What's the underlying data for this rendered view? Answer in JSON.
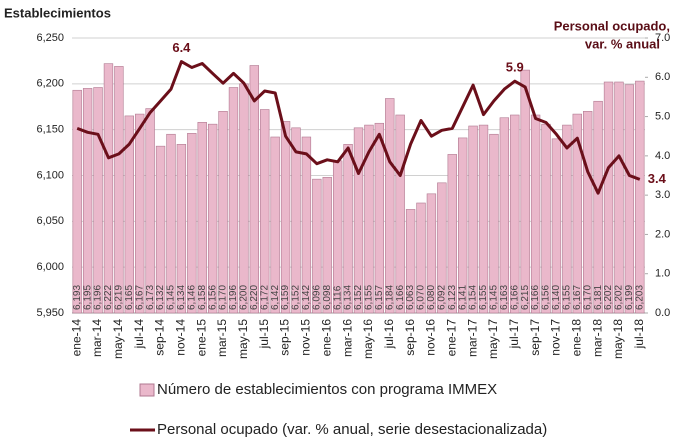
{
  "chart_data": {
    "type": "bar",
    "y_axis_title": "Establecimientos",
    "y2_axis_title_lines": [
      "Personal ocupado,",
      "var. %  anual"
    ],
    "categories": [
      "ene-14",
      null,
      "mar-14",
      null,
      "may-14",
      null,
      "jul-14",
      null,
      "sep-14",
      null,
      "nov-14",
      null,
      "ene-15",
      null,
      "mar-15",
      null,
      "may-15",
      null,
      "jul-15",
      null,
      "sep-15",
      null,
      "nov-15",
      null,
      "ene-16",
      null,
      "mar-16",
      null,
      "may-16",
      null,
      "jul-16",
      null,
      "sep-16",
      null,
      "nov-16",
      null,
      "ene-17",
      null,
      "mar-17",
      null,
      "may-17",
      null,
      "jul-17",
      null,
      "sep-17",
      null,
      "nov-17",
      null,
      "ene-18",
      null,
      "mar-18",
      null,
      "may-18",
      null,
      "jul-18"
    ],
    "ylim": [
      5950,
      6250
    ],
    "yticks": [
      {
        "value": 5950,
        "label": "5,950"
      },
      {
        "value": 6000,
        "label": "6,000"
      },
      {
        "value": 6050,
        "label": "6,050"
      },
      {
        "value": 6100,
        "label": "6,100"
      },
      {
        "value": 6150,
        "label": "6,150"
      },
      {
        "value": 6200,
        "label": "6,200"
      },
      {
        "value": 6250,
        "label": "6,250"
      }
    ],
    "y2lim": [
      0,
      7
    ],
    "y2ticks": [
      {
        "value": 0,
        "label": "0.0"
      },
      {
        "value": 1,
        "label": "1.0"
      },
      {
        "value": 2,
        "label": "2.0"
      },
      {
        "value": 3,
        "label": "3.0"
      },
      {
        "value": 4,
        "label": "4.0"
      },
      {
        "value": 5,
        "label": "5.0"
      },
      {
        "value": 6,
        "label": "6.0"
      },
      {
        "value": 7,
        "label": "7.0"
      }
    ],
    "grid": true,
    "series": [
      {
        "name": "Número de establecimientos con programa IMMEX",
        "type": "bar",
        "color": "#eab8cb",
        "edge": "#b07890",
        "values": [
          6193,
          6195,
          6196,
          6222,
          6219,
          6165,
          6167,
          6173,
          6132,
          6145,
          6134,
          6146,
          6158,
          6156,
          6170,
          6196,
          6200,
          6220,
          6172,
          6142,
          6159,
          6152,
          6142,
          6096,
          6098,
          6116,
          6134,
          6152,
          6155,
          6157,
          6184,
          6166,
          6063,
          6070,
          6080,
          6092,
          6123,
          6141,
          6154,
          6155,
          6145,
          6163,
          6166,
          6215,
          6166,
          6156,
          6140,
          6155,
          6167,
          6170,
          6181,
          6202,
          6202,
          6199,
          6203
        ],
        "value_labels": [
          "6,193",
          "6,195",
          "6,196",
          "6,222",
          "6,219",
          "6,165",
          "6,167",
          "6,173",
          "6,132",
          "6,145",
          "6,134",
          "6,146",
          "6,158",
          "6,156",
          "6,170",
          "6,196",
          "6,200",
          "6,220",
          "6,172",
          "6,142",
          "6,159",
          "6,152",
          "6,142",
          "6,096",
          "6,098",
          "6,116",
          "6,134",
          "6,152",
          "6,155",
          "6,157",
          "6,184",
          "6,166",
          "6,063",
          "6,070",
          "6,080",
          "6,092",
          "6,123",
          "6,141",
          "6,154",
          "6,155",
          "6,145",
          "6,163",
          "6,166",
          "6,215",
          "6,166",
          "6,156",
          "6,140",
          "6,155",
          "6,167",
          "6,170",
          "6,181",
          "6,202",
          "6,202",
          "6,199",
          "6,203"
        ]
      },
      {
        "name": "Personal ocupado (var. % anual, serie desestacionalizada)",
        "type": "line",
        "axis": "y2",
        "color": "#6b0f1a",
        "values": [
          4.7,
          4.6,
          4.55,
          3.95,
          4.05,
          4.3,
          4.7,
          5.1,
          5.4,
          5.7,
          6.4,
          6.25,
          6.35,
          6.1,
          5.85,
          6.1,
          5.85,
          5.4,
          5.65,
          5.6,
          4.5,
          4.1,
          4.05,
          3.8,
          3.9,
          3.85,
          4.2,
          3.55,
          4.1,
          4.55,
          3.85,
          3.5,
          4.3,
          4.9,
          4.5,
          4.65,
          4.7,
          5.25,
          5.8,
          5.05,
          5.4,
          5.7,
          5.9,
          5.75,
          4.95,
          4.85,
          4.55,
          4.2,
          4.45,
          3.6,
          3.05,
          3.7,
          4.0,
          3.5,
          3.4
        ],
        "value_labels": [
          null,
          null,
          null,
          null,
          null,
          null,
          null,
          null,
          null,
          null,
          "6.4",
          null,
          null,
          null,
          null,
          null,
          null,
          null,
          null,
          null,
          null,
          null,
          null,
          null,
          null,
          null,
          null,
          null,
          null,
          null,
          null,
          null,
          null,
          null,
          null,
          null,
          null,
          null,
          null,
          null,
          null,
          null,
          "5.9",
          null,
          null,
          null,
          null,
          null,
          null,
          null,
          null,
          null,
          null,
          null,
          "3.4"
        ]
      }
    ]
  }
}
